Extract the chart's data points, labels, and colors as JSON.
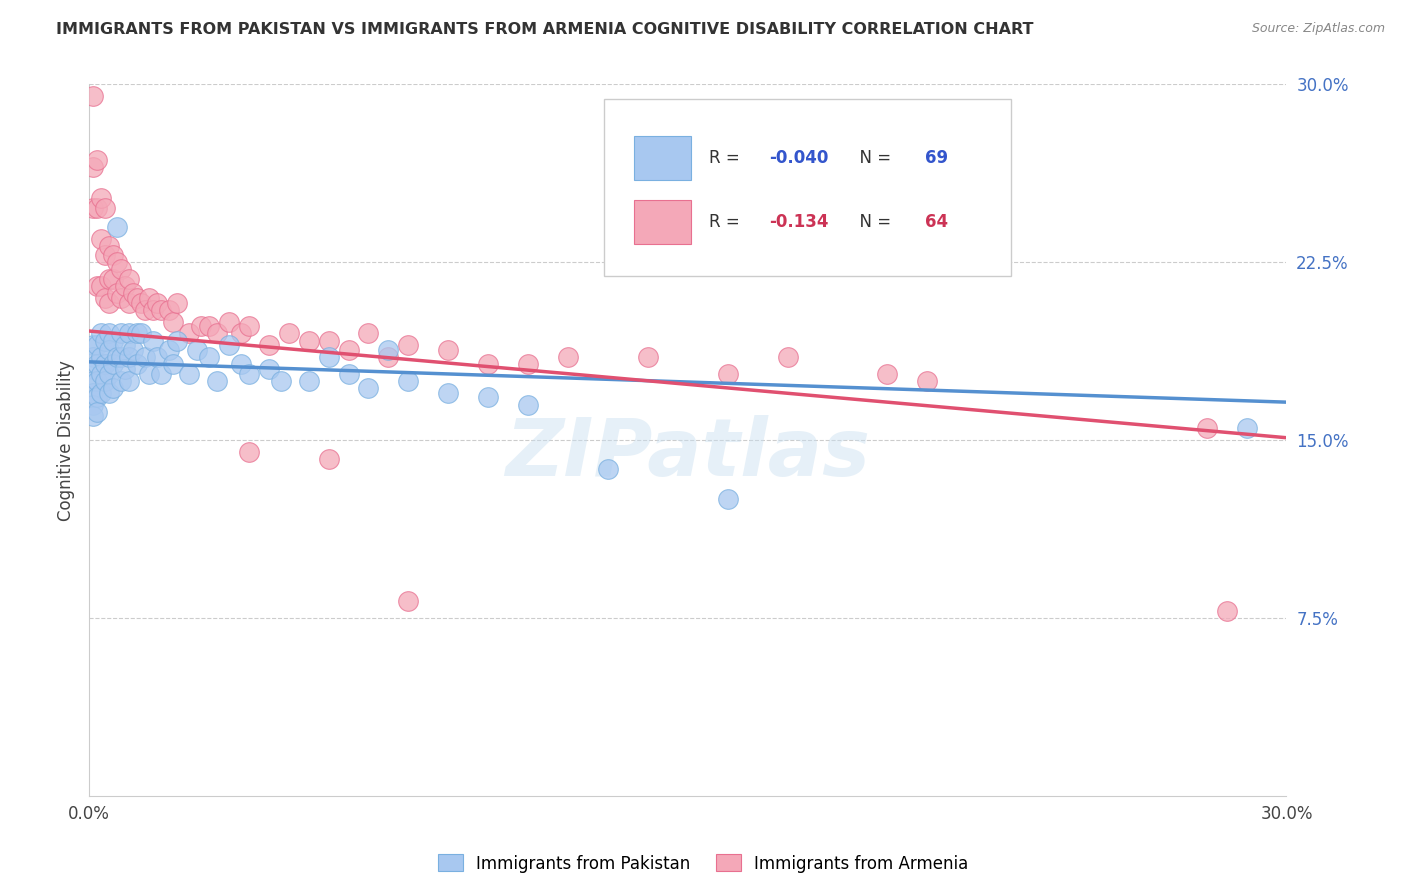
{
  "title": "IMMIGRANTS FROM PAKISTAN VS IMMIGRANTS FROM ARMENIA COGNITIVE DISABILITY CORRELATION CHART",
  "source": "Source: ZipAtlas.com",
  "ylabel": "Cognitive Disability",
  "right_yticks": [
    "30.0%",
    "22.5%",
    "15.0%",
    "7.5%"
  ],
  "right_ytick_vals": [
    0.3,
    0.225,
    0.15,
    0.075
  ],
  "xmin": 0.0,
  "xmax": 0.3,
  "ymin": 0.0,
  "ymax": 0.3,
  "color_pakistan": "#a8c8f0",
  "color_armenia": "#f4a8b8",
  "edge_pakistan": "#7ab0e0",
  "edge_armenia": "#e87090",
  "line_pakistan": "#5590d0",
  "line_armenia": "#e05070",
  "watermark": "ZIPatlas",
  "legend_r1_prefix": "R = ",
  "legend_r1_val": "-0.040",
  "legend_n1_prefix": "N = ",
  "legend_n1_val": "69",
  "legend_r2_prefix": "R =  ",
  "legend_r2_val": "-0.134",
  "legend_n2_prefix": "N = ",
  "legend_n2_val": "64",
  "pakistan_x": [
    0.001,
    0.001,
    0.001,
    0.001,
    0.001,
    0.001,
    0.001,
    0.002,
    0.002,
    0.002,
    0.002,
    0.002,
    0.003,
    0.003,
    0.003,
    0.003,
    0.004,
    0.004,
    0.004,
    0.005,
    0.005,
    0.005,
    0.005,
    0.006,
    0.006,
    0.006,
    0.007,
    0.007,
    0.008,
    0.008,
    0.008,
    0.009,
    0.009,
    0.01,
    0.01,
    0.01,
    0.011,
    0.012,
    0.012,
    0.013,
    0.014,
    0.015,
    0.016,
    0.017,
    0.018,
    0.02,
    0.021,
    0.022,
    0.025,
    0.027,
    0.03,
    0.032,
    0.035,
    0.038,
    0.04,
    0.045,
    0.048,
    0.055,
    0.06,
    0.065,
    0.07,
    0.075,
    0.08,
    0.09,
    0.1,
    0.11,
    0.13,
    0.16,
    0.29
  ],
  "pakistan_y": [
    0.19,
    0.185,
    0.18,
    0.175,
    0.17,
    0.165,
    0.16,
    0.19,
    0.182,
    0.175,
    0.168,
    0.162,
    0.195,
    0.185,
    0.178,
    0.17,
    0.192,
    0.182,
    0.175,
    0.195,
    0.188,
    0.178,
    0.17,
    0.192,
    0.182,
    0.172,
    0.24,
    0.185,
    0.195,
    0.185,
    0.175,
    0.19,
    0.18,
    0.195,
    0.185,
    0.175,
    0.188,
    0.195,
    0.182,
    0.195,
    0.185,
    0.178,
    0.192,
    0.185,
    0.178,
    0.188,
    0.182,
    0.192,
    0.178,
    0.188,
    0.185,
    0.175,
    0.19,
    0.182,
    0.178,
    0.18,
    0.175,
    0.175,
    0.185,
    0.178,
    0.172,
    0.188,
    0.175,
    0.17,
    0.168,
    0.165,
    0.138,
    0.125,
    0.155
  ],
  "armenia_x": [
    0.001,
    0.001,
    0.001,
    0.002,
    0.002,
    0.002,
    0.003,
    0.003,
    0.003,
    0.004,
    0.004,
    0.004,
    0.005,
    0.005,
    0.005,
    0.006,
    0.006,
    0.007,
    0.007,
    0.008,
    0.008,
    0.009,
    0.01,
    0.01,
    0.011,
    0.012,
    0.013,
    0.014,
    0.015,
    0.016,
    0.017,
    0.018,
    0.02,
    0.021,
    0.022,
    0.025,
    0.028,
    0.03,
    0.032,
    0.035,
    0.038,
    0.04,
    0.045,
    0.05,
    0.055,
    0.06,
    0.065,
    0.07,
    0.075,
    0.08,
    0.09,
    0.1,
    0.11,
    0.12,
    0.14,
    0.16,
    0.175,
    0.2,
    0.21,
    0.28,
    0.04,
    0.06,
    0.08,
    0.285
  ],
  "armenia_y": [
    0.295,
    0.265,
    0.248,
    0.268,
    0.248,
    0.215,
    0.252,
    0.235,
    0.215,
    0.248,
    0.228,
    0.21,
    0.232,
    0.218,
    0.208,
    0.228,
    0.218,
    0.225,
    0.212,
    0.222,
    0.21,
    0.215,
    0.218,
    0.208,
    0.212,
    0.21,
    0.208,
    0.205,
    0.21,
    0.205,
    0.208,
    0.205,
    0.205,
    0.2,
    0.208,
    0.195,
    0.198,
    0.198,
    0.195,
    0.2,
    0.195,
    0.198,
    0.19,
    0.195,
    0.192,
    0.192,
    0.188,
    0.195,
    0.185,
    0.19,
    0.188,
    0.182,
    0.182,
    0.185,
    0.185,
    0.178,
    0.185,
    0.178,
    0.175,
    0.155,
    0.145,
    0.142,
    0.082,
    0.078
  ],
  "pk_line_x0": 0.0,
  "pk_line_x1": 0.3,
  "pk_line_y0": 0.183,
  "pk_line_y1": 0.166,
  "ar_line_x0": 0.0,
  "ar_line_x1": 0.3,
  "ar_line_y0": 0.196,
  "ar_line_y1": 0.151
}
